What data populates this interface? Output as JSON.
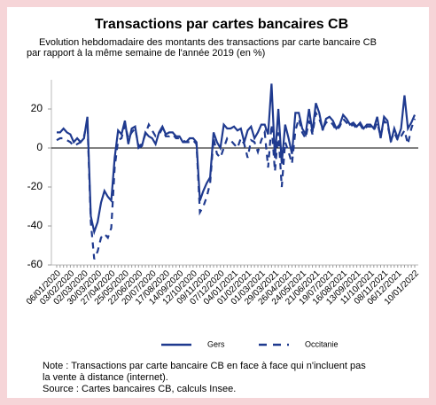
{
  "chart_data": {
    "type": "line",
    "title": "Transactions par cartes bancaires CB",
    "subtitle": [
      "Evolution hebdomadaire des montants des transactions par carte bancaire CB",
      "par rapport à la même semaine de l'année 2019 (en %)"
    ],
    "categories": [
      "06/01/2020",
      null,
      null,
      null,
      "03/02/2020",
      null,
      null,
      null,
      "02/03/2020",
      null,
      null,
      null,
      "30/03/2020",
      null,
      null,
      null,
      "27/04/2020",
      null,
      null,
      null,
      "25/05/2020",
      null,
      null,
      null,
      "22/06/2020",
      null,
      null,
      null,
      "20/07/2020",
      null,
      null,
      null,
      "17/08/2020",
      null,
      null,
      null,
      "14/09/2020",
      null,
      null,
      null,
      "12/10/2020",
      null,
      null,
      null,
      "09/11/2020",
      null,
      null,
      null,
      "07/12/2020",
      null,
      null,
      null,
      "04/01/2021",
      null,
      null,
      null,
      "01/02/2021",
      null,
      null,
      null,
      "01/03/2021",
      null,
      null,
      null,
      "29/03/2021",
      null,
      null,
      null,
      "26/04/2021",
      null,
      null,
      null,
      "24/05/2021",
      null,
      null,
      null,
      "21/06/2021",
      null,
      null,
      null,
      "19/07/2021",
      null,
      null,
      null,
      "16/08/2021",
      null,
      null,
      null,
      "13/09/2021",
      null,
      null,
      null,
      "11/10/2021",
      null,
      null,
      null,
      "08/11/2021",
      null,
      null,
      null,
      "06/12/2021",
      null,
      null,
      null,
      null,
      "10/01/2022"
    ],
    "series": [
      {
        "name": "Gers",
        "color": "#1f3a8f",
        "dashed": false,
        "values": [
          8,
          8,
          10,
          8,
          7,
          3,
          5,
          3,
          5,
          16,
          -35,
          -43,
          -38,
          -28,
          -22,
          -25,
          -27,
          -5,
          9,
          7,
          14,
          2,
          10,
          11,
          0,
          1,
          8,
          6,
          5,
          2,
          8,
          11,
          7,
          8,
          8,
          6,
          6,
          3,
          3,
          5,
          5,
          3,
          -27,
          -22,
          -18,
          -15,
          8,
          3,
          0,
          12,
          10,
          10,
          11,
          9,
          10,
          3,
          9,
          11,
          5,
          8,
          12,
          12,
          7,
          33,
          -5,
          20,
          -8,
          12,
          5,
          -3,
          18,
          18,
          10,
          7,
          20,
          8,
          23,
          18,
          9,
          15,
          16,
          14,
          10,
          12,
          17,
          15,
          12,
          13,
          11,
          13,
          10,
          12,
          12,
          10,
          16,
          5,
          16,
          14,
          3,
          10,
          5,
          10,
          27,
          10,
          13,
          17
        ]
      },
      {
        "name": "Occitanie",
        "color": "#1f3a8f",
        "dashed": true,
        "values": [
          4,
          5,
          5,
          4,
          3,
          1,
          2,
          3,
          6,
          14,
          -38,
          -57,
          -53,
          -46,
          -44,
          -46,
          -41,
          -10,
          4,
          5,
          12,
          5,
          8,
          10,
          1,
          2,
          7,
          12,
          9,
          6,
          7,
          10,
          6,
          6,
          7,
          5,
          5,
          4,
          3,
          3,
          4,
          2,
          -33,
          -30,
          -25,
          -18,
          5,
          -3,
          -5,
          0,
          5,
          4,
          2,
          0,
          5,
          2,
          -5,
          4,
          3,
          -2,
          4,
          8,
          -10,
          12,
          -12,
          8,
          -20,
          3,
          -2,
          -8,
          9,
          15,
          8,
          5,
          14,
          7,
          18,
          15,
          10,
          13,
          14,
          12,
          9,
          11,
          15,
          13,
          11,
          12,
          10,
          12,
          9,
          11,
          11,
          9,
          13,
          6,
          14,
          12,
          4,
          8,
          4,
          6,
          9,
          2,
          10,
          15
        ]
      }
    ],
    "ylim": [
      -60,
      35
    ],
    "yticks": [
      -60,
      -40,
      -20,
      0,
      20
    ],
    "grid": false,
    "legend": "bottom",
    "note": [
      "Note : Transactions par carte bancaire CB en face à face qui n'incluent pas",
      "la vente à distance (internet).",
      "Source : Cartes bancaires CB, calculs Insee."
    ]
  }
}
